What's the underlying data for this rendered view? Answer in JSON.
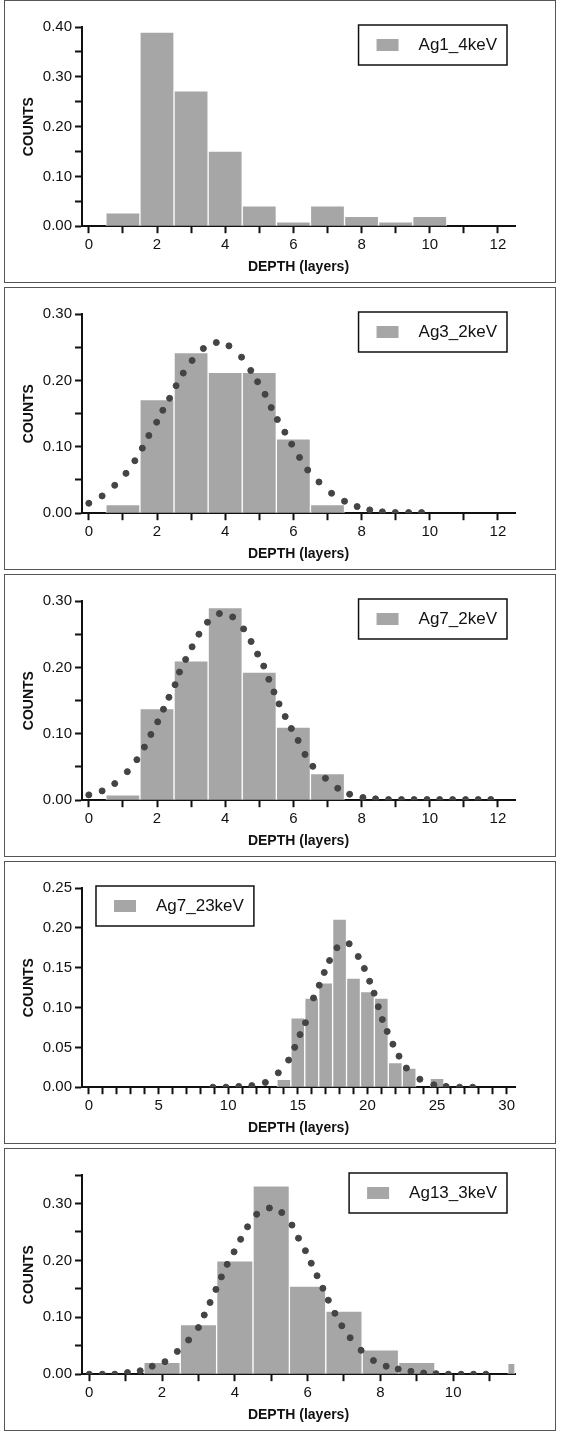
{
  "chart_data": [
    {
      "type": "histogram",
      "xlabel": "DEPTH (layers)",
      "ylabel": "COUNTS",
      "legend": "top right",
      "xlim": [
        -0.2,
        12.5
      ],
      "ylim": [
        0,
        0.4
      ],
      "xticks": [
        0,
        {
          "value": 1,
          "label": null
        },
        2,
        {
          "value": 3,
          "label": null
        },
        4,
        {
          "value": 5,
          "label": null
        },
        6,
        {
          "value": 7,
          "label": null
        },
        8,
        {
          "value": 9,
          "label": null
        },
        10,
        {
          "value": 11,
          "label": null
        },
        12
      ],
      "yticks": [
        {
          "value": 0,
          "label": "0.00"
        },
        {
          "value": 0.05,
          "label": null
        },
        {
          "value": 0.1,
          "label": "0.10"
        },
        {
          "value": 0.15,
          "label": null
        },
        {
          "value": 0.2,
          "label": "0.20"
        },
        {
          "value": 0.25,
          "label": null
        },
        {
          "value": 0.3,
          "label": "0.30"
        },
        {
          "value": 0.35,
          "label": null
        },
        {
          "value": 0.4,
          "label": "0.40"
        }
      ],
      "bins": [
        0.5,
        1.5,
        2.5,
        3.5,
        4.5,
        5.5,
        6.5,
        7.5,
        8.5,
        9.5,
        10.5
      ],
      "series": [
        {
          "name": "Ag1_4keV",
          "color": "#a6a6a6",
          "values": [
            0.027,
            0.39,
            0.272,
            0.151,
            0.041,
            0.009,
            0.041,
            0.02,
            0.009,
            0.02
          ]
        }
      ]
    },
    {
      "type": "histogram",
      "xlabel": "DEPTH (layers)",
      "ylabel": "COUNTS",
      "legend": "top right",
      "marker": "circle",
      "xlim": [
        -0.2,
        12.5
      ],
      "ylim": [
        0,
        0.3
      ],
      "xticks": [
        0,
        {
          "value": 1,
          "label": null
        },
        2,
        {
          "value": 3,
          "label": null
        },
        4,
        {
          "value": 5,
          "label": null
        },
        6,
        {
          "value": 7,
          "label": null
        },
        8,
        {
          "value": 9,
          "label": null
        },
        10,
        {
          "value": 11,
          "label": null
        },
        12
      ],
      "yticks": [
        {
          "value": 0,
          "label": "0.00"
        },
        {
          "value": 0.05,
          "label": null
        },
        {
          "value": 0.1,
          "label": "0.10"
        },
        {
          "value": 0.15,
          "label": null
        },
        {
          "value": 0.2,
          "label": "0.20"
        },
        {
          "value": 0.25,
          "label": null
        },
        {
          "value": 0.3,
          "label": "0.30"
        }
      ],
      "bins": [
        0.5,
        1.5,
        2.5,
        3.5,
        4.5,
        5.5,
        6.5,
        7.5
      ],
      "series": [
        {
          "name": "Ag3_2keV",
          "color": "#a6a6a6",
          "values": [
            0.013,
            0.171,
            0.242,
            0.212,
            0.212,
            0.112,
            0.013
          ]
        },
        {
          "type": "scatter",
          "color": "#444444",
          "x": [
            0,
            0.39,
            0.76,
            1.09,
            1.35,
            1.57,
            1.76,
            1.99,
            2.17,
            2.37,
            2.56,
            2.77,
            3.03,
            3.36,
            3.74,
            4.11,
            4.48,
            4.75,
            4.95,
            5.17,
            5.35,
            5.53,
            5.75,
            5.95,
            6.18,
            6.42,
            6.75,
            7.12,
            7.5,
            7.87,
            8.24,
            8.61,
            8.99,
            9.38,
            9.76
          ],
          "values": [
            0.015,
            0.026,
            0.042,
            0.06,
            0.079,
            0.098,
            0.117,
            0.137,
            0.155,
            0.173,
            0.192,
            0.211,
            0.23,
            0.248,
            0.257,
            0.252,
            0.235,
            0.215,
            0.198,
            0.179,
            0.159,
            0.141,
            0.122,
            0.104,
            0.084,
            0.065,
            0.047,
            0.03,
            0.018,
            0.01,
            0.005,
            0.002,
            0.001,
            0.001,
            0.001
          ]
        }
      ]
    },
    {
      "type": "histogram",
      "xlabel": "DEPTH (layers)",
      "ylabel": "COUNTS",
      "legend": "top right",
      "marker": "circle",
      "xlim": [
        -0.2,
        12.5
      ],
      "ylim": [
        0,
        0.3
      ],
      "xticks": [
        0,
        {
          "value": 1,
          "label": null
        },
        2,
        {
          "value": 3,
          "label": null
        },
        4,
        {
          "value": 5,
          "label": null
        },
        6,
        {
          "value": 7,
          "label": null
        },
        8,
        {
          "value": 9,
          "label": null
        },
        10,
        {
          "value": 11,
          "label": null
        },
        12
      ],
      "yticks": [
        {
          "value": 0,
          "label": "0.00"
        },
        {
          "value": 0.05,
          "label": null
        },
        {
          "value": 0.1,
          "label": "0.10"
        },
        {
          "value": 0.15,
          "label": null
        },
        {
          "value": 0.2,
          "label": "0.20"
        },
        {
          "value": 0.25,
          "label": null
        },
        {
          "value": 0.3,
          "label": "0.30"
        }
      ],
      "bins": [
        0.5,
        1.5,
        2.5,
        3.5,
        4.5,
        5.5,
        6.5,
        7.5
      ],
      "series": [
        {
          "name": "Ag7_2keV",
          "color": "#a6a6a6",
          "values": [
            0.008,
            0.138,
            0.21,
            0.29,
            0.193,
            0.11,
            0.04
          ]
        },
        {
          "type": "scatter",
          "color": "#444444",
          "x": [
            0,
            0.39,
            0.76,
            1.13,
            1.41,
            1.63,
            1.82,
            2.02,
            2.19,
            2.35,
            2.53,
            2.66,
            2.84,
            3.03,
            3.23,
            3.48,
            3.83,
            4.22,
            4.54,
            4.76,
            4.95,
            5.13,
            5.28,
            5.43,
            5.58,
            5.76,
            5.94,
            6.14,
            6.34,
            6.57,
            6.94,
            7.3,
            7.65,
            8.04,
            8.41,
            8.79,
            9.17,
            9.54,
            9.92,
            10.29,
            10.67,
            11.05,
            11.42,
            11.79
          ],
          "values": [
            0.008,
            0.014,
            0.025,
            0.043,
            0.061,
            0.08,
            0.099,
            0.118,
            0.137,
            0.155,
            0.174,
            0.193,
            0.212,
            0.231,
            0.25,
            0.268,
            0.281,
            0.276,
            0.258,
            0.239,
            0.22,
            0.202,
            0.182,
            0.163,
            0.145,
            0.126,
            0.108,
            0.09,
            0.069,
            0.051,
            0.033,
            0.018,
            0.009,
            0.004,
            0.002,
            0.001,
            0.001,
            0.001,
            0.001,
            0.001,
            0.001,
            0.001,
            0.001,
            0.001
          ]
        }
      ]
    },
    {
      "type": "histogram",
      "xlabel": "DEPTH (layers)",
      "ylabel": "COUNTS",
      "legend": "top left",
      "marker": "circle",
      "xlim": [
        -0.5,
        30.6
      ],
      "ylim": [
        0,
        0.25
      ],
      "xticks": [
        0,
        {
          "value": 1,
          "label": null
        },
        {
          "value": 2,
          "label": null
        },
        {
          "value": 3,
          "label": null
        },
        {
          "value": 4,
          "label": null
        },
        5,
        {
          "value": 6,
          "label": null
        },
        {
          "value": 7,
          "label": null
        },
        {
          "value": 8,
          "label": null
        },
        {
          "value": 9,
          "label": null
        },
        10,
        {
          "value": 11,
          "label": null
        },
        {
          "value": 12,
          "label": null
        },
        {
          "value": 13,
          "label": null
        },
        {
          "value": 14,
          "label": null
        },
        15,
        {
          "value": 16,
          "label": null
        },
        {
          "value": 17,
          "label": null
        },
        {
          "value": 18,
          "label": null
        },
        {
          "value": 19,
          "label": null
        },
        20,
        {
          "value": 21,
          "label": null
        },
        {
          "value": 22,
          "label": null
        },
        {
          "value": 23,
          "label": null
        },
        {
          "value": 24,
          "label": null
        },
        25,
        {
          "value": 26,
          "label": null
        },
        {
          "value": 27,
          "label": null
        },
        {
          "value": 28,
          "label": null
        },
        {
          "value": 29,
          "label": null
        },
        30
      ],
      "yticks": [
        {
          "value": 0,
          "label": "0.00"
        },
        {
          "value": 0.05,
          "label": "0.05"
        },
        {
          "value": 0.1,
          "label": "0.10"
        },
        {
          "value": 0.15,
          "label": "0.15"
        },
        {
          "value": 0.2,
          "label": "0.20"
        },
        {
          "value": 0.25,
          "label": "0.25"
        }
      ],
      "bins": [
        13.5,
        14.5,
        15.5,
        16.5,
        17.5,
        18.5,
        19.5,
        20.5,
        21.5,
        22.5,
        23.5,
        24.5,
        25.5
      ],
      "series": [
        {
          "name": "Ag7_23keV",
          "color": "#a6a6a6",
          "values": [
            0.01,
            0.087,
            0.112,
            0.131,
            0.211,
            0.137,
            0.12,
            0.112,
            0.031,
            0.024,
            0,
            0.011
          ]
        },
        {
          "type": "scatter",
          "color": "#444444",
          "x": [
            8.9,
            9.84,
            10.76,
            11.7,
            12.67,
            13.6,
            14.34,
            14.78,
            15.16,
            15.55,
            16.13,
            16.54,
            16.9,
            17.28,
            17.81,
            18.69,
            19.34,
            19.78,
            20.16,
            20.48,
            20.78,
            21.07,
            21.42,
            21.83,
            22.27,
            22.8,
            23.77,
            24.77,
            25.65,
            26.62,
            27.56
          ],
          "values": [
            0,
            0,
            0.001,
            0.002,
            0.006,
            0.018,
            0.034,
            0.05,
            0.066,
            0.081,
            0.112,
            0.128,
            0.144,
            0.159,
            0.175,
            0.18,
            0.164,
            0.149,
            0.133,
            0.118,
            0.101,
            0.085,
            0.07,
            0.054,
            0.039,
            0.024,
            0.01,
            0.003,
            0.001,
            0,
            0
          ]
        }
      ]
    },
    {
      "type": "histogram",
      "xlabel": "DEPTH (layers)",
      "ylabel": "COUNTS",
      "legend": "top right",
      "marker": "circle",
      "xlim": [
        -0.2,
        11.7
      ],
      "ylim": [
        0,
        0.35
      ],
      "xticks": [
        0,
        {
          "value": 1,
          "label": null
        },
        2,
        {
          "value": 3,
          "label": null
        },
        4,
        {
          "value": 5,
          "label": null
        },
        6,
        {
          "value": 7,
          "label": null
        },
        8,
        {
          "value": 9,
          "label": null
        },
        10,
        {
          "value": 11,
          "label": null
        }
      ],
      "yticks": [
        {
          "value": 0,
          "label": "0.00"
        },
        {
          "value": 0.05,
          "label": null
        },
        {
          "value": 0.1,
          "label": "0.10"
        },
        {
          "value": 0.15,
          "label": null
        },
        {
          "value": 0.2,
          "label": "0.20"
        },
        {
          "value": 0.25,
          "label": null
        },
        {
          "value": 0.3,
          "label": "0.30"
        },
        {
          "value": 0.35,
          "label": null
        }
      ],
      "bins": [
        1.5,
        2.5,
        3.5,
        4.5,
        5.5,
        6.5,
        7.5,
        8.5,
        9.5,
        10.5,
        11.5,
        11.7
      ],
      "series": [
        {
          "name": "Ag13_3keV",
          "color": "#a6a6a6",
          "values": [
            0.021,
            0.087,
            0.199,
            0.331,
            0.155,
            0.111,
            0.043,
            0.021,
            0,
            0,
            0.019
          ]
        },
        {
          "type": "scatter",
          "color": "#444444",
          "x": [
            0,
            0.36,
            0.7,
            1.05,
            1.4,
            1.73,
            2.08,
            2.42,
            2.73,
            3.0,
            3.16,
            3.32,
            3.48,
            3.63,
            3.79,
            3.98,
            4.16,
            4.35,
            4.6,
            4.95,
            5.29,
            5.57,
            5.75,
            5.94,
            6.1,
            6.26,
            6.42,
            6.57,
            6.75,
            6.94,
            7.17,
            7.47,
            7.81,
            8.16,
            8.49,
            8.84,
            9.19,
            9.53,
            9.87,
            10.22,
            10.56,
            10.9
          ],
          "values": [
            0,
            0,
            0,
            0.003,
            0.006,
            0.014,
            0.022,
            0.04,
            0.06,
            0.082,
            0.104,
            0.126,
            0.149,
            0.171,
            0.193,
            0.215,
            0.237,
            0.259,
            0.281,
            0.292,
            0.284,
            0.262,
            0.239,
            0.217,
            0.195,
            0.173,
            0.151,
            0.13,
            0.107,
            0.085,
            0.064,
            0.042,
            0.024,
            0.014,
            0.009,
            0.005,
            0.002,
            0.001,
            0,
            0,
            0,
            0
          ]
        }
      ]
    }
  ]
}
